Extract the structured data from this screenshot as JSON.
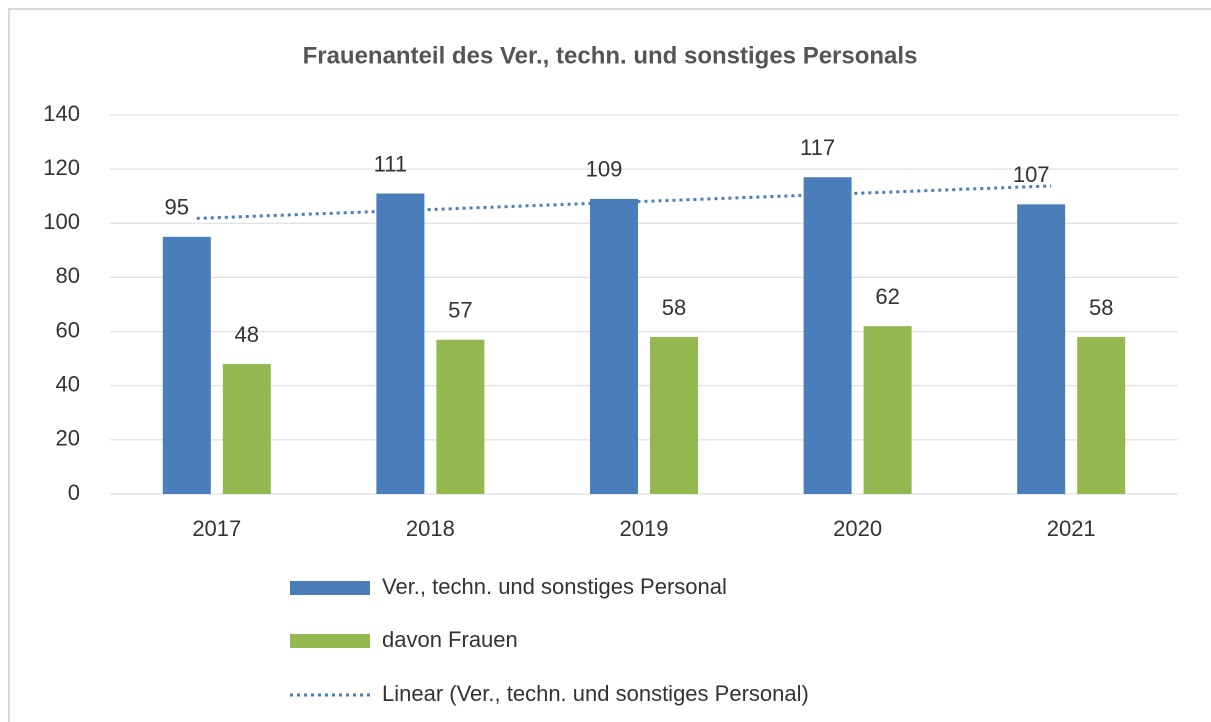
{
  "chart_data": {
    "type": "bar",
    "title": "Frauenanteil des Ver., techn. und sonstiges Personals",
    "categories": [
      "2017",
      "2018",
      "2019",
      "2020",
      "2021"
    ],
    "series": [
      {
        "name": "Ver., techn. und sonstiges Personal",
        "color": "#4a7ebb",
        "values": [
          95,
          111,
          109,
          117,
          107
        ]
      },
      {
        "name": "davon Frauen",
        "color": "#93b850",
        "values": [
          48,
          57,
          58,
          62,
          58
        ]
      }
    ],
    "trendline": {
      "name": "Linear (Ver., techn. und sonstiges Personal)",
      "color": "#4a7ebb",
      "values": [
        101.8,
        104.8,
        107.8,
        110.8,
        113.8
      ]
    },
    "ylim": [
      0,
      140
    ],
    "yticks": [
      0,
      20,
      40,
      60,
      80,
      100,
      120,
      140
    ],
    "grid": true,
    "legend": "bottom"
  }
}
